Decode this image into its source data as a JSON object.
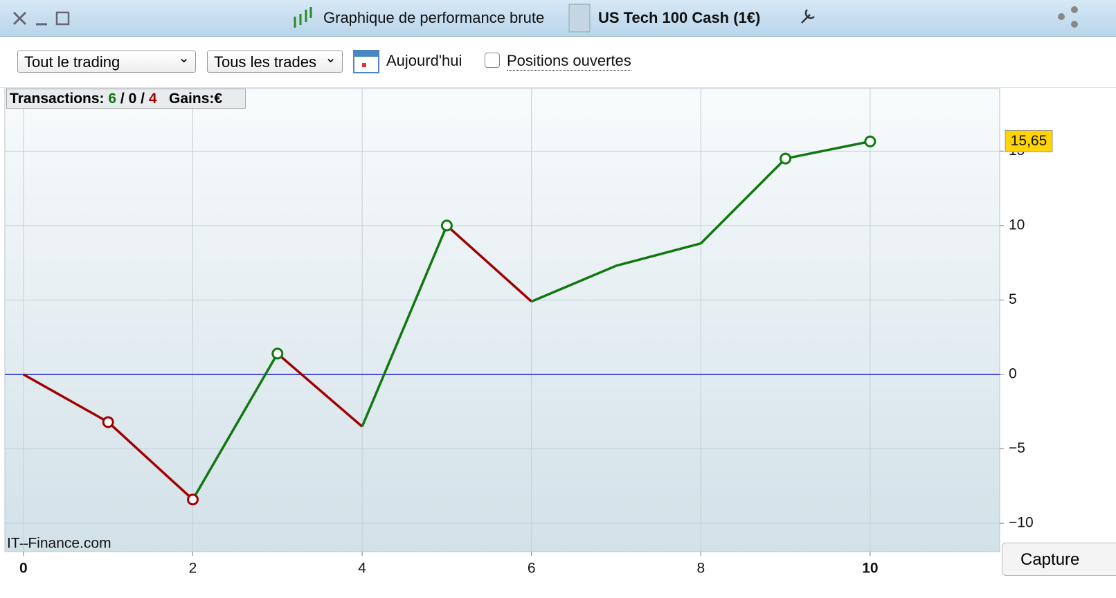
{
  "window": {
    "title": "Graphique de performance brute",
    "instrument": "US Tech 100 Cash (1€)"
  },
  "toolbar": {
    "scope": "Tout le trading",
    "trades": "Tous les trades",
    "date": "Aujourd'hui",
    "open_positions": "Positions ouvertes"
  },
  "stats": {
    "label": "Transactions:",
    "won": "6",
    "separator": "/",
    "neutral": "0",
    "lost": "4",
    "gains_label": "Gains:",
    "gains_value": "€"
  },
  "watermark": "IT–Finance.com",
  "capture_button": "Capture",
  "chart_data": {
    "type": "line",
    "x": [
      0,
      1,
      2,
      3,
      4,
      5,
      6,
      7,
      8,
      9,
      10
    ],
    "values": [
      0,
      -3.2,
      -8.4,
      1.4,
      -3.5,
      10.0,
      4.9,
      7.3,
      8.8,
      14.5,
      15.65
    ],
    "value_labels": [
      null,
      null,
      null,
      null,
      null,
      null,
      null,
      null,
      null,
      null,
      "15,65"
    ],
    "marker_indices": [
      1,
      2,
      3,
      5,
      9,
      10
    ],
    "up_color": "#117711",
    "down_color": "#a00000",
    "zero_line_color": "#1a1ad0",
    "xlim": [
      -0.22,
      11.53
    ],
    "xticks": [
      0,
      2,
      4,
      6,
      8,
      10
    ],
    "ylim": [
      -11.9,
      19.2
    ],
    "yticks": [
      {
        "value": -10,
        "label": "−10"
      },
      {
        "value": -5,
        "label": "−5"
      },
      0,
      5,
      10,
      15
    ],
    "grid": true
  }
}
